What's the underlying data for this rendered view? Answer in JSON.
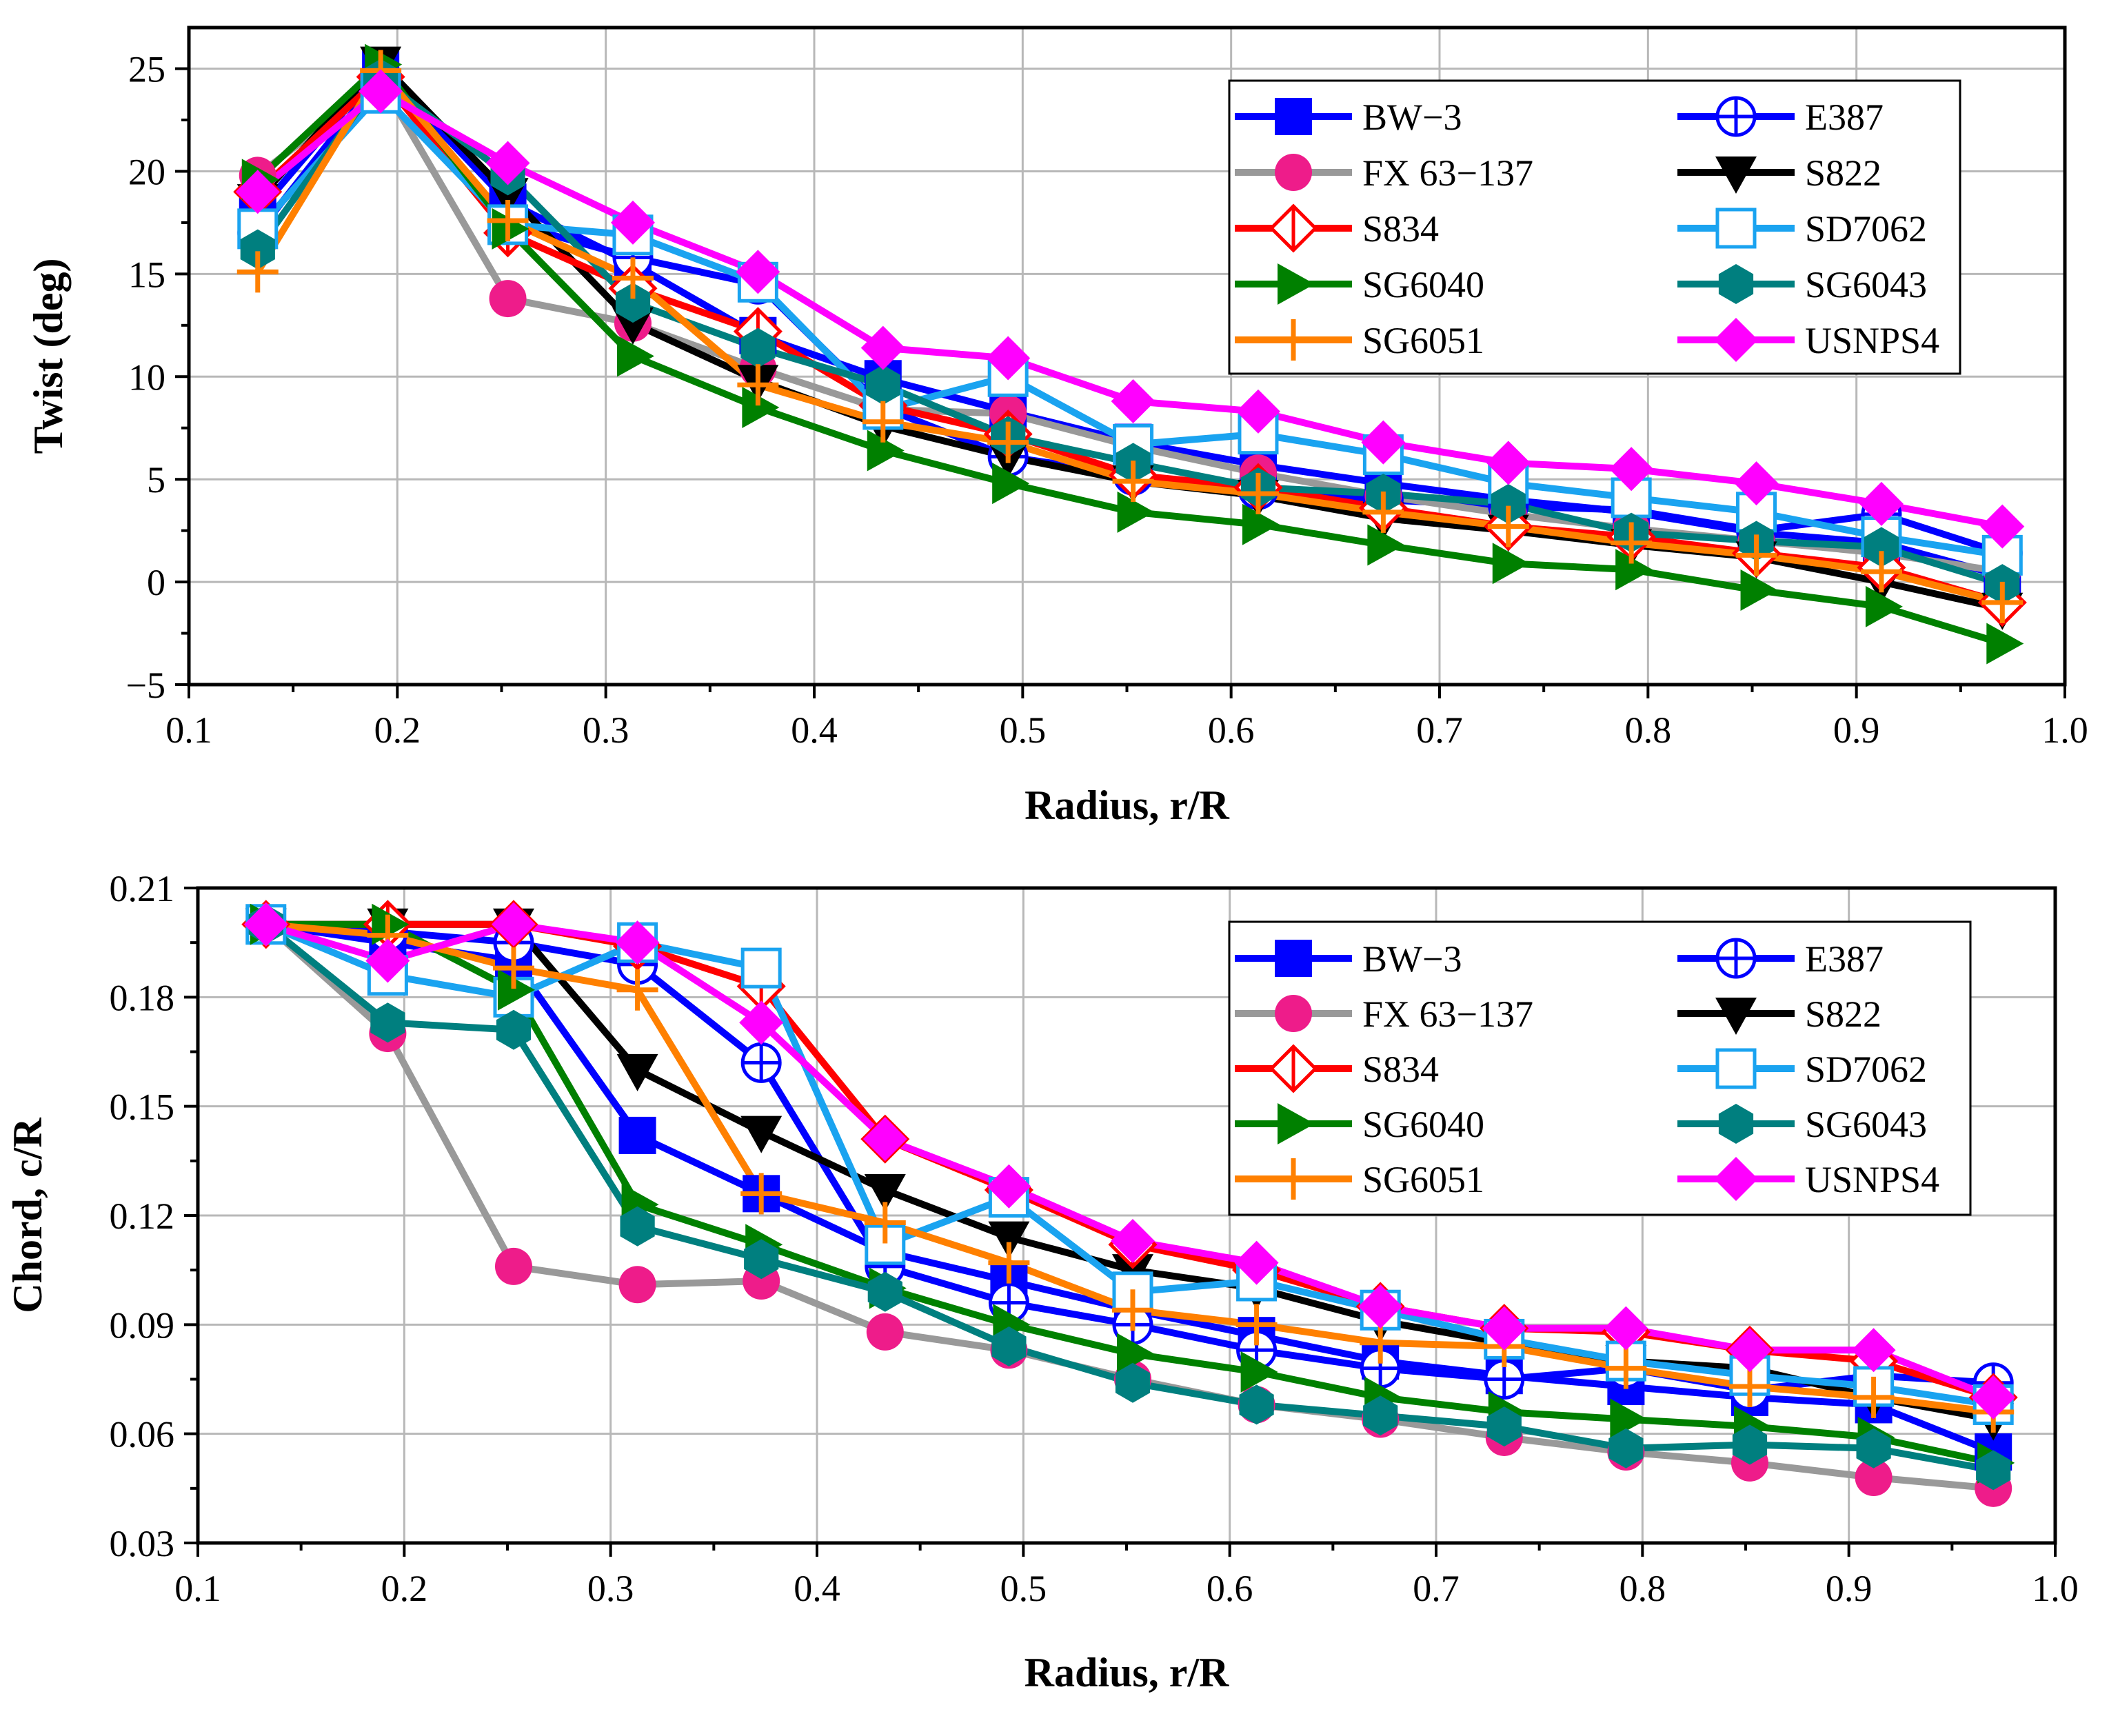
{
  "chart_data": [
    {
      "type": "line",
      "id": "twist",
      "title": "",
      "xlabel": "Radius, r/R",
      "ylabel": "Twist (deg)",
      "xlim": [
        0.1,
        1.0
      ],
      "ylim": [
        -5,
        27
      ],
      "x_ticks": [
        "0.1",
        "0.2",
        "0.3",
        "0.4",
        "0.5",
        "0.6",
        "0.7",
        "0.8",
        "0.9",
        "1.0"
      ],
      "x_tick_values": [
        0.1,
        0.2,
        0.3,
        0.4,
        0.5,
        0.6,
        0.7,
        0.8,
        0.9,
        1.0
      ],
      "y_ticks": [
        "−5",
        "0",
        "5",
        "10",
        "15",
        "20",
        "25"
      ],
      "y_tick_values": [
        -5,
        0,
        5,
        10,
        15,
        20,
        25
      ],
      "grid": true,
      "legend_position": "top-right",
      "x": [
        0.133,
        0.192,
        0.253,
        0.313,
        0.373,
        0.433,
        0.493,
        0.553,
        0.613,
        0.673,
        0.733,
        0.792,
        0.852,
        0.912,
        0.97
      ],
      "series": [
        {
          "name": "BW−3",
          "color": "#0000FF",
          "marker": "square-filled",
          "values": [
            18.0,
            25.0,
            18.5,
            15.5,
            12.0,
            9.9,
            8.3,
            6.8,
            5.7,
            4.8,
            4.0,
            3.4,
            2.4,
            1.9,
            0.3
          ]
        },
        {
          "name": "E387",
          "color": "#0000FF",
          "marker": "circle-plus",
          "values": [
            17.0,
            24.6,
            17.5,
            15.8,
            14.5,
            8.5,
            6.1,
            5.2,
            4.5,
            4.0,
            3.7,
            3.5,
            2.5,
            3.3,
            1.4
          ]
        },
        {
          "name": "FX 63−137",
          "color": "#999999",
          "marker": "circle-magenta",
          "values": [
            19.8,
            24.4,
            13.8,
            12.6,
            10.4,
            8.4,
            8.2,
            6.6,
            5.3,
            4.2,
            3.3,
            2.6,
            2.0,
            1.4,
            0.5
          ]
        },
        {
          "name": "S822",
          "color": "#000000",
          "marker": "triangle-down",
          "values": [
            18.6,
            25.3,
            18.9,
            12.6,
            9.8,
            7.6,
            6.1,
            4.9,
            4.2,
            3.1,
            2.5,
            1.8,
            1.2,
            0.0,
            -1.3
          ]
        },
        {
          "name": "S834",
          "color": "#FF0000",
          "marker": "diamond-split",
          "values": [
            19.0,
            24.6,
            17.0,
            14.3,
            12.2,
            8.6,
            7.2,
            5.2,
            4.6,
            3.6,
            2.7,
            2.2,
            1.4,
            0.7,
            -1.0
          ]
        },
        {
          "name": "SD7062",
          "color": "#1AA3F0",
          "marker": "square-open",
          "values": [
            17.2,
            23.8,
            17.4,
            16.9,
            14.6,
            8.4,
            10.0,
            6.7,
            7.2,
            6.2,
            4.8,
            4.1,
            3.4,
            2.2,
            1.3
          ]
        },
        {
          "name": "SG6040",
          "color": "#008000",
          "marker": "triangle-right",
          "values": [
            19.6,
            25.2,
            17.2,
            11.0,
            8.5,
            6.4,
            4.8,
            3.4,
            2.8,
            1.8,
            0.9,
            0.6,
            -0.4,
            -1.2,
            -3.0
          ]
        },
        {
          "name": "SG6043",
          "color": "#007F7F",
          "marker": "hexagon",
          "values": [
            16.2,
            24.5,
            19.8,
            13.6,
            11.4,
            9.6,
            7.1,
            5.8,
            4.6,
            4.3,
            3.8,
            2.4,
            2.0,
            1.7,
            -0.1
          ]
        },
        {
          "name": "SG6051",
          "color": "#FF8000",
          "marker": "plus",
          "values": [
            15.1,
            24.9,
            17.6,
            14.8,
            9.6,
            7.8,
            6.8,
            4.9,
            4.3,
            3.4,
            2.7,
            1.9,
            1.3,
            0.5,
            -1.0
          ]
        },
        {
          "name": "USNPS4",
          "color": "#FF00FF",
          "marker": "diamond",
          "values": [
            19.0,
            23.9,
            20.4,
            17.5,
            15.1,
            11.4,
            10.9,
            8.8,
            8.3,
            6.8,
            5.8,
            5.5,
            4.8,
            3.8,
            2.7
          ]
        }
      ]
    },
    {
      "type": "line",
      "id": "chord",
      "title": "",
      "xlabel": "Radius, r/R",
      "ylabel": "Chord, c/R",
      "xlim": [
        0.1,
        1.0
      ],
      "ylim": [
        0.03,
        0.21
      ],
      "x_ticks": [
        "0.1",
        "0.2",
        "0.3",
        "0.4",
        "0.5",
        "0.6",
        "0.7",
        "0.8",
        "0.9",
        "1.0"
      ],
      "x_tick_values": [
        0.1,
        0.2,
        0.3,
        0.4,
        0.5,
        0.6,
        0.7,
        0.8,
        0.9,
        1.0
      ],
      "y_ticks": [
        "0.03",
        "0.06",
        "0.09",
        "0.12",
        "0.15",
        "0.18",
        "0.21"
      ],
      "y_tick_values": [
        0.03,
        0.06,
        0.09,
        0.12,
        0.15,
        0.18,
        0.21
      ],
      "grid": true,
      "legend_position": "top-right",
      "x": [
        0.133,
        0.192,
        0.253,
        0.313,
        0.373,
        0.433,
        0.493,
        0.553,
        0.613,
        0.673,
        0.733,
        0.792,
        0.852,
        0.912,
        0.97
      ],
      "series": [
        {
          "name": "BW−3",
          "color": "#0000FF",
          "marker": "square-filled",
          "values": [
            0.2,
            0.195,
            0.19,
            0.142,
            0.126,
            0.11,
            0.102,
            0.094,
            0.087,
            0.08,
            0.076,
            0.073,
            0.07,
            0.068,
            0.055
          ]
        },
        {
          "name": "E387",
          "color": "#0000FF",
          "marker": "circle-plus",
          "values": [
            0.2,
            0.198,
            0.195,
            0.189,
            0.162,
            0.106,
            0.096,
            0.09,
            0.083,
            0.078,
            0.075,
            0.078,
            0.072,
            0.076,
            0.074
          ]
        },
        {
          "name": "FX 63−137",
          "color": "#999999",
          "marker": "circle-magenta",
          "values": [
            0.2,
            0.17,
            0.106,
            0.101,
            0.102,
            0.088,
            0.083,
            0.075,
            0.068,
            0.064,
            0.059,
            0.055,
            0.052,
            0.048,
            0.045
          ]
        },
        {
          "name": "S822",
          "color": "#000000",
          "marker": "triangle-down",
          "values": [
            0.2,
            0.2,
            0.2,
            0.16,
            0.143,
            0.127,
            0.114,
            0.105,
            0.1,
            0.091,
            0.085,
            0.08,
            0.078,
            0.07,
            0.064
          ]
        },
        {
          "name": "S834",
          "color": "#FF0000",
          "marker": "diamond-split",
          "values": [
            0.2,
            0.2,
            0.2,
            0.194,
            0.183,
            0.141,
            0.127,
            0.112,
            0.105,
            0.095,
            0.089,
            0.088,
            0.083,
            0.08,
            0.07
          ]
        },
        {
          "name": "SD7062",
          "color": "#1AA3F0",
          "marker": "square-open",
          "values": [
            0.2,
            0.186,
            0.18,
            0.195,
            0.188,
            0.112,
            0.125,
            0.099,
            0.102,
            0.094,
            0.086,
            0.08,
            0.076,
            0.073,
            0.068
          ]
        },
        {
          "name": "SG6040",
          "color": "#008000",
          "marker": "triangle-right",
          "values": [
            0.2,
            0.2,
            0.182,
            0.123,
            0.112,
            0.1,
            0.09,
            0.082,
            0.077,
            0.07,
            0.066,
            0.064,
            0.062,
            0.059,
            0.052
          ]
        },
        {
          "name": "SG6043",
          "color": "#007F7F",
          "marker": "hexagon",
          "values": [
            0.2,
            0.173,
            0.171,
            0.117,
            0.108,
            0.099,
            0.084,
            0.074,
            0.068,
            0.065,
            0.062,
            0.056,
            0.057,
            0.056,
            0.05
          ]
        },
        {
          "name": "SG6051",
          "color": "#FF8000",
          "marker": "plus",
          "values": [
            0.2,
            0.197,
            0.188,
            0.182,
            0.126,
            0.118,
            0.107,
            0.094,
            0.09,
            0.085,
            0.084,
            0.078,
            0.073,
            0.07,
            0.066
          ]
        },
        {
          "name": "USNPS4",
          "color": "#FF00FF",
          "marker": "diamond",
          "values": [
            0.2,
            0.19,
            0.2,
            0.195,
            0.173,
            0.141,
            0.128,
            0.113,
            0.107,
            0.095,
            0.089,
            0.089,
            0.083,
            0.083,
            0.07
          ]
        }
      ]
    }
  ]
}
